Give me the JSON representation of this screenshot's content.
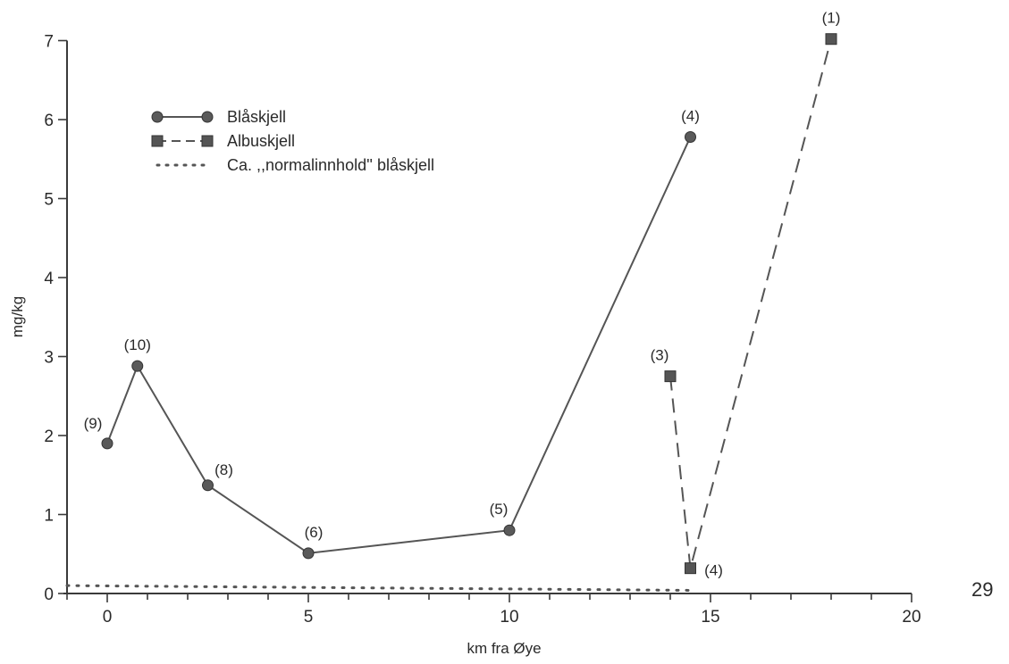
{
  "chart_data": {
    "type": "line",
    "title": "",
    "xlabel": "km fra Øye",
    "ylabel": "mg/kg",
    "xlim": [
      -1,
      20
    ],
    "ylim": [
      0,
      7
    ],
    "x_ticks": [
      0,
      5,
      10,
      15,
      20
    ],
    "y_ticks": [
      0,
      1,
      2,
      3,
      4,
      5,
      6,
      7
    ],
    "grid": false,
    "legend_position": "top-left",
    "series": [
      {
        "name": "Blåskjell",
        "style": "solid",
        "marker": "circle",
        "color": "#555555",
        "points": [
          {
            "x": 0,
            "y": 1.9,
            "label": "(9)"
          },
          {
            "x": 0.75,
            "y": 2.88,
            "label": "(10)"
          },
          {
            "x": 2.5,
            "y": 1.37,
            "label": "(8)"
          },
          {
            "x": 5,
            "y": 0.51,
            "label": "(6)"
          },
          {
            "x": 10,
            "y": 0.8,
            "label": "(5)"
          },
          {
            "x": 14.5,
            "y": 5.78,
            "label": "(4)"
          }
        ]
      },
      {
        "name": "Albuskjell",
        "style": "dashed",
        "marker": "square",
        "color": "#555555",
        "points": [
          {
            "x": 14,
            "y": 2.75,
            "label": "(3)"
          },
          {
            "x": 14.5,
            "y": 0.32,
            "label": "(4)"
          },
          {
            "x": 18,
            "y": 7.02,
            "label": "(1)"
          }
        ]
      },
      {
        "name": "Ca. ,,normalinnhold'' blåskjell",
        "style": "dotted",
        "marker": "none",
        "color": "#555555",
        "points": [
          {
            "x": -1,
            "y": 0.1
          },
          {
            "x": 14.5,
            "y": 0.04
          }
        ]
      }
    ]
  },
  "page_number": "29"
}
